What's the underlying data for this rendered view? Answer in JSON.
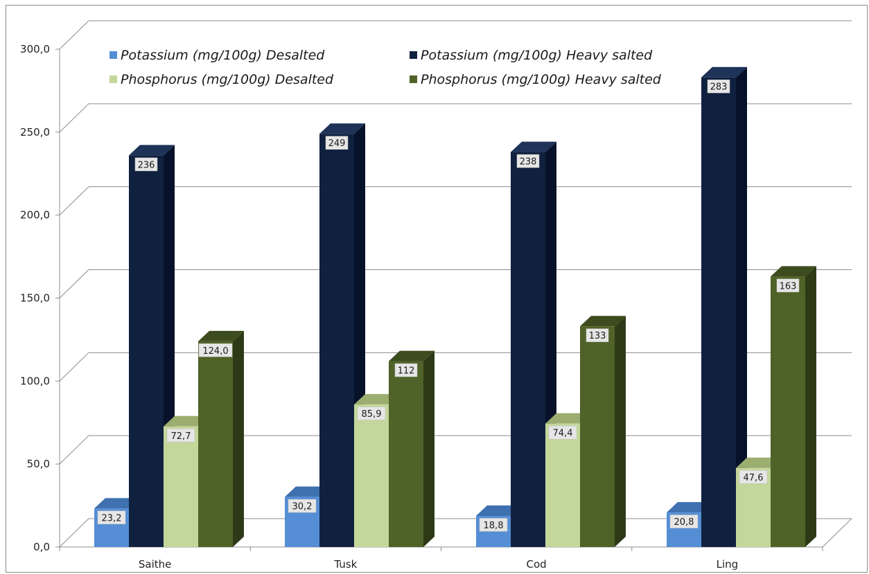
{
  "chart_data": {
    "type": "bar",
    "title": "",
    "xlabel": "",
    "ylabel": "",
    "categories": [
      "Saithe",
      "Tusk",
      "Cod",
      "Ling"
    ],
    "ylim": [
      0,
      300
    ],
    "yticks": [
      "0,0",
      "50,0",
      "100,0",
      "150,0",
      "200,0",
      "250,0",
      "300,0"
    ],
    "grid": true,
    "legend_position": "top",
    "series": [
      {
        "name": "Potassium (mg/100g) Desalted",
        "values": [
          23.2,
          30.2,
          18.8,
          20.8
        ],
        "labels": [
          "23,2",
          "30,2",
          "18,8",
          "20,8"
        ],
        "color": "#558ed5",
        "top_color": "#3f70b0",
        "side_color": "#2c5588"
      },
      {
        "name": "Potassium (mg/100g) Heavy salted",
        "values": [
          236,
          249,
          238,
          283
        ],
        "labels": [
          "236",
          "249",
          "238",
          "283"
        ],
        "color": "#10213f",
        "top_color": "#1f3358",
        "side_color": "#07122a"
      },
      {
        "name": "Phosphorus (mg/100g) Desalted",
        "values": [
          72.7,
          85.9,
          74.4,
          47.6
        ],
        "labels": [
          "72,7",
          "85,9",
          "74,4",
          "47,6"
        ],
        "color": "#c4d79b",
        "top_color": "#9bad6f",
        "side_color": "#7f8f57"
      },
      {
        "name": "Phosphorus (mg/100g) Heavy salted",
        "values": [
          124.0,
          112,
          133,
          163
        ],
        "labels": [
          "124,0",
          "112",
          "133",
          "163"
        ],
        "color": "#4f6228",
        "top_color": "#3d4c1f",
        "side_color": "#2e3a17"
      }
    ]
  }
}
